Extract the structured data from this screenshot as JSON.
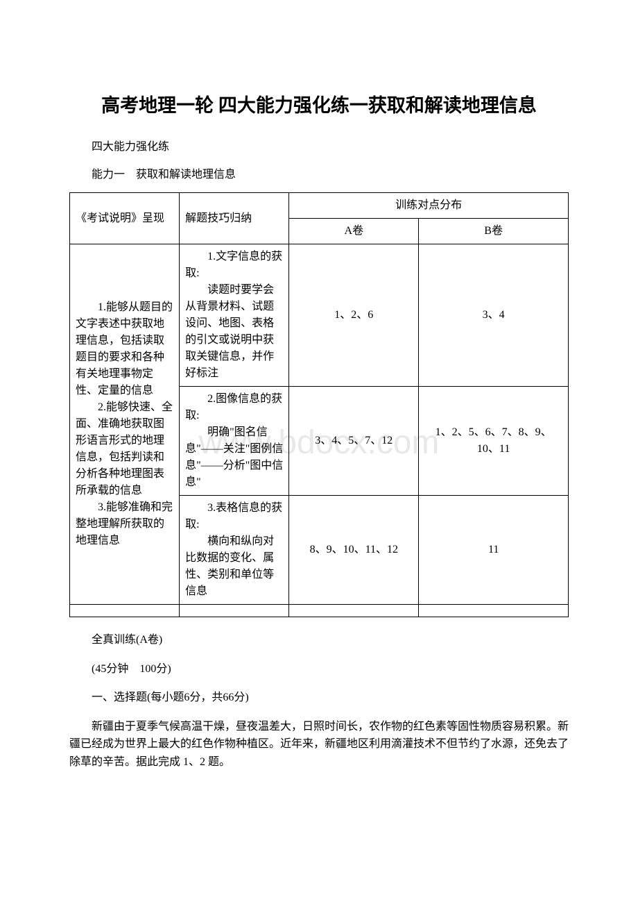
{
  "title": "高考地理一轮 四大能力强化练一获取和解读地理信息",
  "subtitle": "四大能力强化练",
  "section_label": "能力一　获取和解读地理信息",
  "watermark": "www.bdocx.com",
  "table": {
    "header": {
      "col1": "《考试说明》呈现",
      "col2": "解题技巧归纳",
      "col3_merged": "训练对点分布",
      "col3": "A卷",
      "col4": "B卷"
    },
    "rows": [
      {
        "col1": "　　1.能够从题目的文字表述中获取地理信息，包括读取题目的要求和各种有关地理事物定性、定量的信息\n　　2.能够快速、全面、准确地获取图形语言形式的地理信息，包括判读和分析各种地理图表所承载的信息\n　　3.能够准确和完整地理解所获取的地理信息",
        "col2_1": "　　1.文字信息的获取:\n　　读题时要学会从背景材料、试题设问、地图、表格的引文或说明中获取关键信息，并作好标注",
        "col3_1": "1、2、6",
        "col4_1": "3、4",
        "col2_2": "　　2.图像信息的获取:\n　　明确\"图名信息\"——关注\"图例信息\"——分析\"图中信息\"",
        "col3_2": "3、4、5、7、12",
        "col4_2": "1、2、5、6、7、8、9、10、11",
        "col2_3": "　　3.表格信息的获取:\n　　横向和纵向对比数据的变化、属性、类别和单位等信息",
        "col3_3": "8、9、10、11、12",
        "col4_3": "11"
      }
    ]
  },
  "practice_label": "全真训练(A卷)",
  "time_score": "(45分钟　100分)",
  "section_one": "一、选择题(每小题6分，共66分)",
  "passage": "　　新疆由于夏季气候高温干燥，昼夜温差大，日照时间长，农作物的红色素等固性物质容易积累。新疆已经成为世界上最大的红色作物种植区。近年来，新疆地区利用滴灌技术不但节约了水源，还免去了除草的辛苦。据此完成 1、2 题。"
}
